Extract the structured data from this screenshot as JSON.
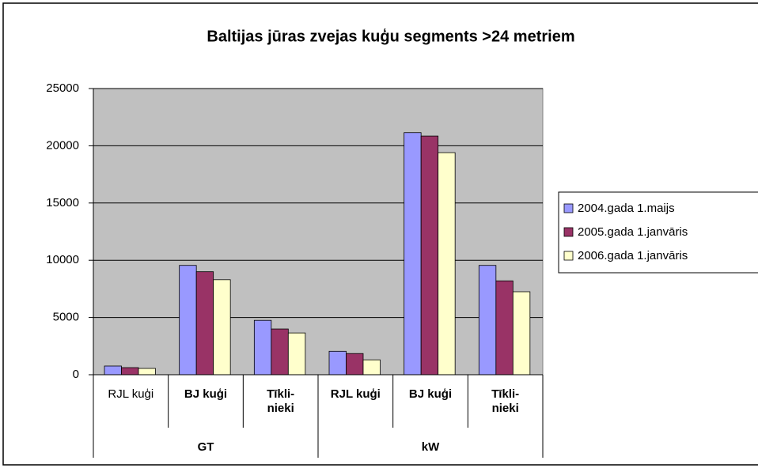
{
  "chart_data": {
    "type": "bar",
    "title": "Baltijas jūras zvejas kuģu segments >24 metriem",
    "categories": [
      "RJL kuģi",
      "BJ kuģi",
      "Tīkli-nieki",
      "RJL kuģi",
      "BJ kuģi",
      "Tīkli-nieki"
    ],
    "category_groups": [
      "GT",
      "kW"
    ],
    "series": [
      {
        "name": "2004.gada 1.maijs",
        "color": "#9999ff",
        "values": [
          760,
          9550,
          4750,
          2050,
          21150,
          9550
        ]
      },
      {
        "name": "2005.gada 1.janvāris",
        "color": "#993366",
        "values": [
          620,
          9000,
          4000,
          1850,
          20850,
          8200
        ]
      },
      {
        "name": "2006.gada 1.janvāris",
        "color": "#ffffcc",
        "values": [
          550,
          8300,
          3650,
          1300,
          19400,
          7250
        ]
      }
    ],
    "ylim": [
      0,
      25000
    ],
    "yticks": [
      0,
      5000,
      10000,
      15000,
      20000,
      25000
    ],
    "grid": true,
    "legend": "right"
  }
}
